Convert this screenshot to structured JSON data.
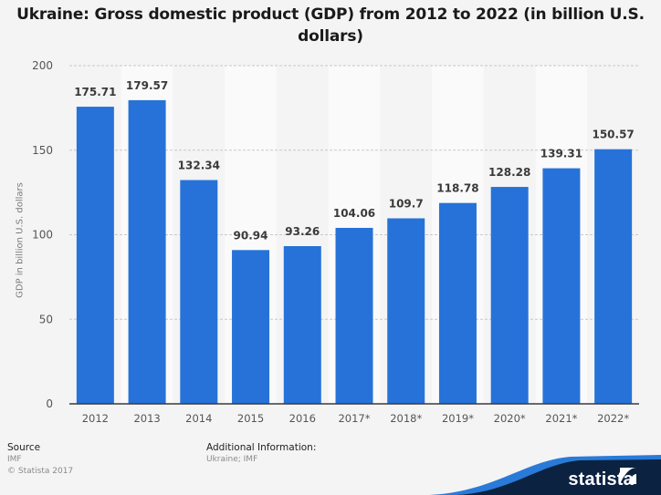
{
  "chart_data": {
    "type": "bar",
    "title": "Ukraine: Gross domestic product (GDP) from 2012 to 2022 (in billion U.S. dollars)",
    "title_lines": [
      "Ukraine: Gross domestic product (GDP) from 2012 to 2022 (in billion U.S.",
      "dollars)"
    ],
    "xlabel": "",
    "ylabel": "GDP in billion U.S. dollars",
    "categories": [
      "2012",
      "2013",
      "2014",
      "2015",
      "2016",
      "2017*",
      "2018*",
      "2019*",
      "2020*",
      "2021*",
      "2022*"
    ],
    "values": [
      175.71,
      179.57,
      132.34,
      90.94,
      93.26,
      104.06,
      109.7,
      118.78,
      128.28,
      139.31,
      150.57
    ],
    "value_labels": [
      "175.71",
      "179.57",
      "132.34",
      "90.94",
      "93.26",
      "104.06",
      "109.7",
      "118.78",
      "128.28",
      "139.31",
      "150.57"
    ],
    "ylim": [
      0,
      200
    ],
    "yticks": [
      0,
      50,
      100,
      150,
      200
    ],
    "ytick_labels": [
      "0",
      "50",
      "100",
      "150",
      "200"
    ],
    "grid": true,
    "legend": "none",
    "bar_color": "#2672d9"
  },
  "footer": {
    "source_heading": "Source",
    "source_value": "IMF",
    "copyright": "© Statista 2017",
    "additional_heading": "Additional Information:",
    "additional_value": "Ukraine; IMF"
  },
  "branding": {
    "logo_text": "statista",
    "logo_icon": "statista-logo-icon",
    "dark_color": "#0b2340",
    "accent_color": "#2672d9"
  }
}
